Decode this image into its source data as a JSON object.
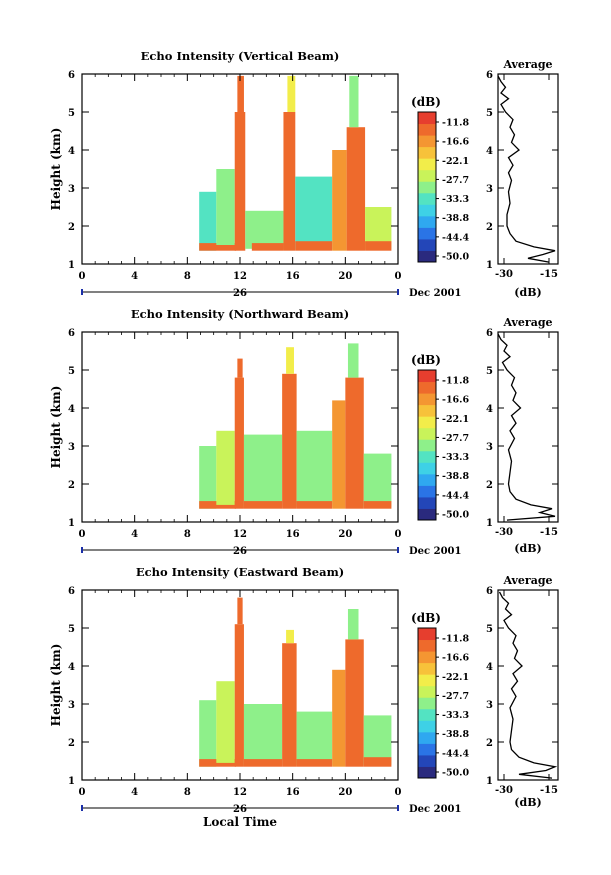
{
  "figure": {
    "xlabel": "Local Time",
    "day_label": "26",
    "month_label": "Dec 2001",
    "colorbar_unit": "(dB)",
    "avg_title": "Average",
    "avg_xlabel": "(dB)"
  },
  "chart_data": [
    {
      "type": "heatmap",
      "title": "Echo Intensity (Vertical Beam)",
      "ylabel": "Height (km)",
      "xlabel": "",
      "xlim": [
        0,
        24
      ],
      "ylim": [
        1,
        6
      ],
      "x_ticks": [
        "0",
        "4",
        "8",
        "12",
        "16",
        "20",
        "0"
      ],
      "y_ticks": [
        "1",
        "2",
        "3",
        "4",
        "5",
        "6"
      ],
      "colorbar_ticks": [
        "-11.8",
        "-16.6",
        "-22.1",
        "-27.7",
        "-33.3",
        "-38.8",
        "-44.4",
        "-50.0"
      ],
      "colorbar_range": [
        -53,
        -8
      ],
      "echo_blocks": [
        {
          "x0": 8.9,
          "x1": 10.2,
          "y0": 1.35,
          "y1": 2.9,
          "dB": -33
        },
        {
          "x0": 8.9,
          "x1": 11.7,
          "y0": 1.35,
          "y1": 1.55,
          "dB": -13
        },
        {
          "x0": 10.2,
          "x1": 11.6,
          "y0": 1.5,
          "y1": 3.5,
          "dB": -30
        },
        {
          "x0": 11.6,
          "x1": 12.4,
          "y0": 1.35,
          "y1": 5.0,
          "dB": -12
        },
        {
          "x0": 11.8,
          "x1": 12.3,
          "y0": 5.0,
          "y1": 5.95,
          "dB": -12
        },
        {
          "x0": 12.4,
          "x1": 15.3,
          "y0": 1.4,
          "y1": 2.4,
          "dB": -32
        },
        {
          "x0": 12.9,
          "x1": 15.3,
          "y0": 1.35,
          "y1": 1.55,
          "dB": -14
        },
        {
          "x0": 15.3,
          "x1": 16.2,
          "y0": 1.35,
          "y1": 5.0,
          "dB": -12
        },
        {
          "x0": 15.6,
          "x1": 16.2,
          "y0": 5.0,
          "y1": 5.95,
          "dB": -22
        },
        {
          "x0": 16.2,
          "x1": 19.0,
          "y0": 1.4,
          "y1": 3.3,
          "dB": -33
        },
        {
          "x0": 16.2,
          "x1": 19.0,
          "y0": 1.35,
          "y1": 1.6,
          "dB": -14
        },
        {
          "x0": 19.0,
          "x1": 20.1,
          "y0": 1.35,
          "y1": 4.0,
          "dB": -17
        },
        {
          "x0": 20.1,
          "x1": 21.5,
          "y0": 1.35,
          "y1": 4.6,
          "dB": -12
        },
        {
          "x0": 20.3,
          "x1": 21.0,
          "y0": 4.6,
          "y1": 5.95,
          "dB": -30
        },
        {
          "x0": 21.5,
          "x1": 23.5,
          "y0": 1.4,
          "y1": 2.5,
          "dB": -28
        },
        {
          "x0": 21.5,
          "x1": 23.5,
          "y0": 1.35,
          "y1": 1.6,
          "dB": -14
        }
      ],
      "average_profile": {
        "xlim": [
          -32,
          -12
        ],
        "x_ticks": [
          "-30",
          "-15"
        ],
        "height": [
          1.05,
          1.15,
          1.25,
          1.35,
          1.45,
          1.6,
          1.8,
          2.0,
          2.3,
          2.6,
          2.9,
          3.2,
          3.4,
          3.6,
          3.8,
          4.0,
          4.2,
          4.4,
          4.6,
          4.8,
          5.0,
          5.2,
          5.35,
          5.5,
          5.65,
          5.8,
          5.95
        ],
        "dB": [
          -15,
          -22,
          -17,
          -13,
          -20,
          -26,
          -28,
          -29,
          -29,
          -28,
          -28.5,
          -27.5,
          -28.5,
          -27,
          -28.5,
          -25,
          -27.5,
          -26.5,
          -28,
          -27,
          -29.5,
          -31,
          -28.5,
          -31,
          -29.5,
          -31,
          -32
        ]
      }
    },
    {
      "type": "heatmap",
      "title": "Echo Intensity (Northward Beam)",
      "ylabel": "Height (km)",
      "xlabel": "",
      "xlim": [
        0,
        24
      ],
      "ylim": [
        1,
        6
      ],
      "x_ticks": [
        "0",
        "4",
        "8",
        "12",
        "16",
        "20",
        "0"
      ],
      "y_ticks": [
        "1",
        "2",
        "3",
        "4",
        "5",
        "6"
      ],
      "colorbar_ticks": [
        "-11.8",
        "-16.6",
        "-22.1",
        "-27.7",
        "-33.3",
        "-38.8",
        "-44.4",
        "-50.0"
      ],
      "colorbar_range": [
        -53,
        -8
      ],
      "echo_blocks": [
        {
          "x0": 8.9,
          "x1": 10.2,
          "y0": 1.35,
          "y1": 3.0,
          "dB": -32
        },
        {
          "x0": 8.9,
          "x1": 11.7,
          "y0": 1.35,
          "y1": 1.55,
          "dB": -13
        },
        {
          "x0": 10.2,
          "x1": 11.6,
          "y0": 1.45,
          "y1": 3.4,
          "dB": -28
        },
        {
          "x0": 11.6,
          "x1": 12.3,
          "y0": 1.35,
          "y1": 4.8,
          "dB": -12
        },
        {
          "x0": 11.8,
          "x1": 12.2,
          "y0": 4.8,
          "y1": 5.3,
          "dB": -12
        },
        {
          "x0": 12.3,
          "x1": 15.2,
          "y0": 1.4,
          "y1": 3.3,
          "dB": -30
        },
        {
          "x0": 12.3,
          "x1": 15.2,
          "y0": 1.35,
          "y1": 1.55,
          "dB": -14
        },
        {
          "x0": 15.2,
          "x1": 16.3,
          "y0": 1.35,
          "y1": 4.9,
          "dB": -12
        },
        {
          "x0": 15.5,
          "x1": 16.1,
          "y0": 4.9,
          "y1": 5.6,
          "dB": -22
        },
        {
          "x0": 16.3,
          "x1": 19.0,
          "y0": 1.4,
          "y1": 3.4,
          "dB": -31
        },
        {
          "x0": 16.3,
          "x1": 19.0,
          "y0": 1.35,
          "y1": 1.55,
          "dB": -14
        },
        {
          "x0": 19.0,
          "x1": 20.0,
          "y0": 1.35,
          "y1": 4.2,
          "dB": -17
        },
        {
          "x0": 20.0,
          "x1": 21.4,
          "y0": 1.35,
          "y1": 4.8,
          "dB": -12
        },
        {
          "x0": 20.2,
          "x1": 21.0,
          "y0": 4.8,
          "y1": 5.7,
          "dB": -30
        },
        {
          "x0": 21.4,
          "x1": 23.5,
          "y0": 1.4,
          "y1": 2.8,
          "dB": -31
        },
        {
          "x0": 21.4,
          "x1": 23.5,
          "y0": 1.35,
          "y1": 1.55,
          "dB": -14
        }
      ],
      "average_profile": {
        "xlim": [
          -32,
          -12
        ],
        "x_ticks": [
          "-30",
          "-15"
        ],
        "height": [
          1.05,
          1.15,
          1.25,
          1.35,
          1.45,
          1.6,
          1.8,
          2.0,
          2.3,
          2.6,
          2.9,
          3.2,
          3.4,
          3.6,
          3.8,
          4.0,
          4.2,
          4.4,
          4.6,
          4.8,
          5.0,
          5.2,
          5.35,
          5.5,
          5.65,
          5.8,
          5.95
        ],
        "dB": [
          -29,
          -13,
          -18,
          -14,
          -21,
          -26,
          -28,
          -28.5,
          -28,
          -27.5,
          -28.5,
          -26.5,
          -28,
          -26,
          -27.5,
          -24.5,
          -27,
          -26,
          -27.5,
          -26.5,
          -29,
          -30.5,
          -28,
          -30,
          -29,
          -31,
          -32
        ]
      }
    },
    {
      "type": "heatmap",
      "title": "Echo Intensity (Eastward Beam)",
      "ylabel": "Height (km)",
      "xlabel": "Local Time",
      "xlim": [
        0,
        24
      ],
      "ylim": [
        1,
        6
      ],
      "x_ticks": [
        "0",
        "4",
        "8",
        "12",
        "16",
        "20",
        "0"
      ],
      "y_ticks": [
        "1",
        "2",
        "3",
        "4",
        "5",
        "6"
      ],
      "colorbar_ticks": [
        "-11.8",
        "-16.6",
        "-22.1",
        "-27.7",
        "-33.3",
        "-38.8",
        "-44.4",
        "-50.0"
      ],
      "colorbar_range": [
        -53,
        -8
      ],
      "echo_blocks": [
        {
          "x0": 8.9,
          "x1": 10.2,
          "y0": 1.35,
          "y1": 3.1,
          "dB": -32
        },
        {
          "x0": 8.9,
          "x1": 11.7,
          "y0": 1.35,
          "y1": 1.55,
          "dB": -13
        },
        {
          "x0": 10.2,
          "x1": 11.6,
          "y0": 1.45,
          "y1": 3.6,
          "dB": -27
        },
        {
          "x0": 11.6,
          "x1": 12.3,
          "y0": 1.35,
          "y1": 5.1,
          "dB": -12
        },
        {
          "x0": 11.8,
          "x1": 12.2,
          "y0": 5.1,
          "y1": 5.8,
          "dB": -12
        },
        {
          "x0": 12.3,
          "x1": 15.2,
          "y0": 1.4,
          "y1": 3.0,
          "dB": -31
        },
        {
          "x0": 12.3,
          "x1": 15.2,
          "y0": 1.35,
          "y1": 1.55,
          "dB": -14
        },
        {
          "x0": 15.2,
          "x1": 16.3,
          "y0": 1.35,
          "y1": 4.6,
          "dB": -12
        },
        {
          "x0": 15.5,
          "x1": 16.1,
          "y0": 4.6,
          "y1": 4.95,
          "dB": -22
        },
        {
          "x0": 16.3,
          "x1": 19.0,
          "y0": 1.4,
          "y1": 2.8,
          "dB": -31
        },
        {
          "x0": 16.3,
          "x1": 19.0,
          "y0": 1.35,
          "y1": 1.55,
          "dB": -14
        },
        {
          "x0": 19.0,
          "x1": 20.0,
          "y0": 1.35,
          "y1": 3.9,
          "dB": -17
        },
        {
          "x0": 20.0,
          "x1": 21.4,
          "y0": 1.35,
          "y1": 4.7,
          "dB": -12
        },
        {
          "x0": 20.2,
          "x1": 21.0,
          "y0": 4.7,
          "y1": 5.5,
          "dB": -30
        },
        {
          "x0": 21.4,
          "x1": 23.5,
          "y0": 1.4,
          "y1": 2.7,
          "dB": -30
        },
        {
          "x0": 21.4,
          "x1": 23.5,
          "y0": 1.35,
          "y1": 1.6,
          "dB": -14
        }
      ],
      "average_profile": {
        "xlim": [
          -32,
          -12
        ],
        "x_ticks": [
          "-30",
          "-15"
        ],
        "height": [
          1.05,
          1.15,
          1.25,
          1.35,
          1.45,
          1.6,
          1.8,
          2.0,
          2.3,
          2.6,
          2.9,
          3.2,
          3.4,
          3.6,
          3.8,
          4.0,
          4.2,
          4.4,
          4.6,
          4.8,
          5.0,
          5.2,
          5.35,
          5.5,
          5.65,
          5.8,
          5.95
        ],
        "dB": [
          -14,
          -25,
          -16,
          -13,
          -20,
          -25,
          -27.5,
          -28,
          -27.5,
          -27,
          -28,
          -26,
          -27.5,
          -25.5,
          -27,
          -24,
          -26.5,
          -25.5,
          -27,
          -26,
          -28.5,
          -30,
          -27.5,
          -29.5,
          -28.5,
          -30.5,
          -31.5
        ]
      }
    }
  ]
}
